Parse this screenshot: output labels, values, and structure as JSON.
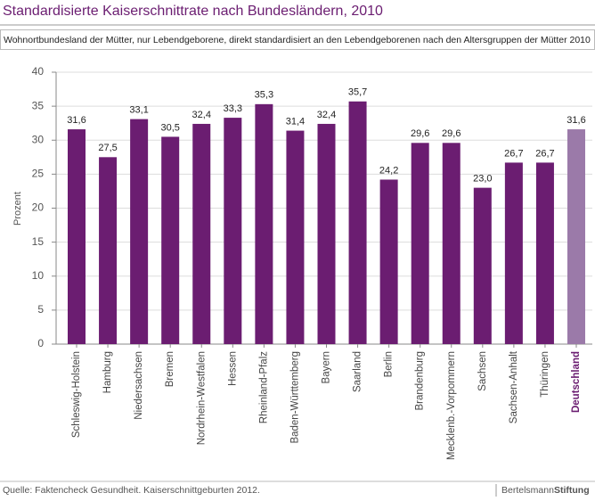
{
  "chart_data": {
    "type": "bar",
    "title": "Standardisierte Kaiserschnittrate nach Bundesländern, 2010",
    "subtitle": "Wohnortbundesland der Mütter, nur Lebendgeborene, direkt standardisiert an den Lebendgeborenen nach den Altersgruppen der Mütter 2010",
    "y_label": "Prozent",
    "categories": [
      "Schleswig-Holstein",
      "Hamburg",
      "Niedersachsen",
      "Bremen",
      "Nordrhein-Westfalen",
      "Hessen",
      "Rheinland-Pfalz",
      "Baden-Württemberg",
      "Bayern",
      "Saarland",
      "Berlin",
      "Brandenburg",
      "Mecklenb.-Vorpommern",
      "Sachsen",
      "Sachsen-Anhalt",
      "Thüringen",
      "Deutschland"
    ],
    "values": [
      31.6,
      27.5,
      33.1,
      30.5,
      32.4,
      33.3,
      35.3,
      31.4,
      32.4,
      35.7,
      24.2,
      29.6,
      29.6,
      23.0,
      26.7,
      26.7,
      31.6
    ],
    "value_labels": [
      "31,6",
      "27,5",
      "33,1",
      "30,5",
      "32,4",
      "33,3",
      "35,3",
      "31,4",
      "32,4",
      "35,7",
      "24,2",
      "29,6",
      "29,6",
      "23,0",
      "26,7",
      "26,7",
      "31,6"
    ],
    "color": "#6b1d71",
    "colors": [
      "#6b1d71",
      "#6b1d71",
      "#6b1d71",
      "#6b1d71",
      "#6b1d71",
      "#6b1d71",
      "#6b1d71",
      "#6b1d71",
      "#6b1d71",
      "#6b1d71",
      "#6b1d71",
      "#6b1d71",
      "#6b1d71",
      "#6b1d71",
      "#6b1d71",
      "#6b1d71",
      "#9b7aa9"
    ],
    "ylim": [
      0,
      40
    ],
    "yticks": [
      0,
      5,
      10,
      15,
      20,
      25,
      30,
      35,
      40
    ],
    "grid": true,
    "source": "Quelle: Faktencheck Gesundheit. Kaiserschnittgeburten 2012.",
    "logo": {
      "first": "Bertelsmann",
      "second": "Stiftung"
    }
  }
}
